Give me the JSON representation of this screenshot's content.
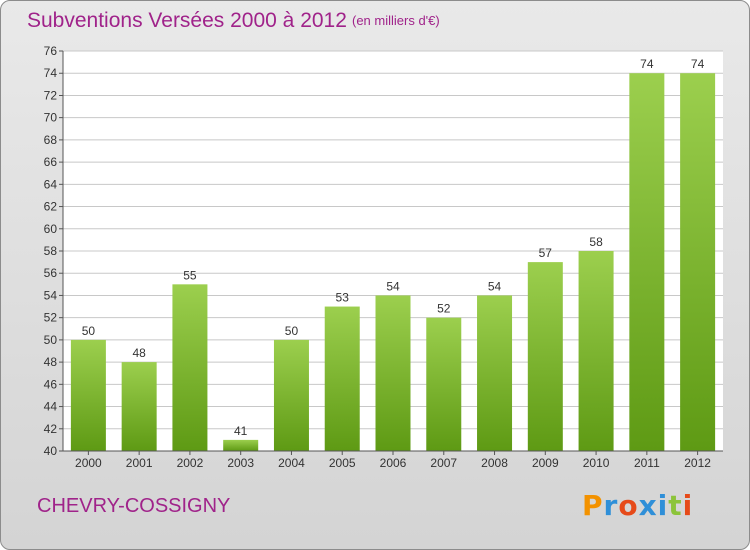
{
  "header": {
    "title": "Subventions Versées 2000 à 2012",
    "subtitle": "(en milliers d'€)"
  },
  "footer": {
    "commune": "CHEVRY-COSSIGNY",
    "logo_letters": [
      "P",
      "r",
      "o",
      "x",
      "i",
      "t",
      "i"
    ],
    "logo_colors": [
      "#f39200",
      "#2f8fd8",
      "#e64a19",
      "#2f8fd8",
      "#2f8fd8",
      "#8cc43a",
      "#e64a19"
    ]
  },
  "colors": {
    "title": "#a0238a",
    "bar_top": "#9ccf4e",
    "bar_bottom": "#5e9a14",
    "grid": "#c8c8c8",
    "axis_text": "#333333"
  },
  "chart_data": {
    "type": "bar",
    "categories": [
      "2000",
      "2001",
      "2002",
      "2003",
      "2004",
      "2005",
      "2006",
      "2007",
      "2008",
      "2009",
      "2010",
      "2011",
      "2012"
    ],
    "values": [
      50,
      48,
      55,
      41,
      50,
      53,
      54,
      52,
      54,
      57,
      58,
      74,
      74
    ],
    "value_labels": [
      "50",
      "48",
      "55",
      "41",
      "50",
      "53",
      "54",
      "52",
      "54",
      "57",
      "58",
      "74",
      "74"
    ],
    "ylim": [
      40,
      76
    ],
    "ytick_step": 2,
    "yticks": [
      "40",
      "42",
      "44",
      "46",
      "48",
      "50",
      "52",
      "54",
      "56",
      "58",
      "60",
      "62",
      "64",
      "66",
      "68",
      "70",
      "72",
      "74",
      "76"
    ],
    "grid": true
  }
}
